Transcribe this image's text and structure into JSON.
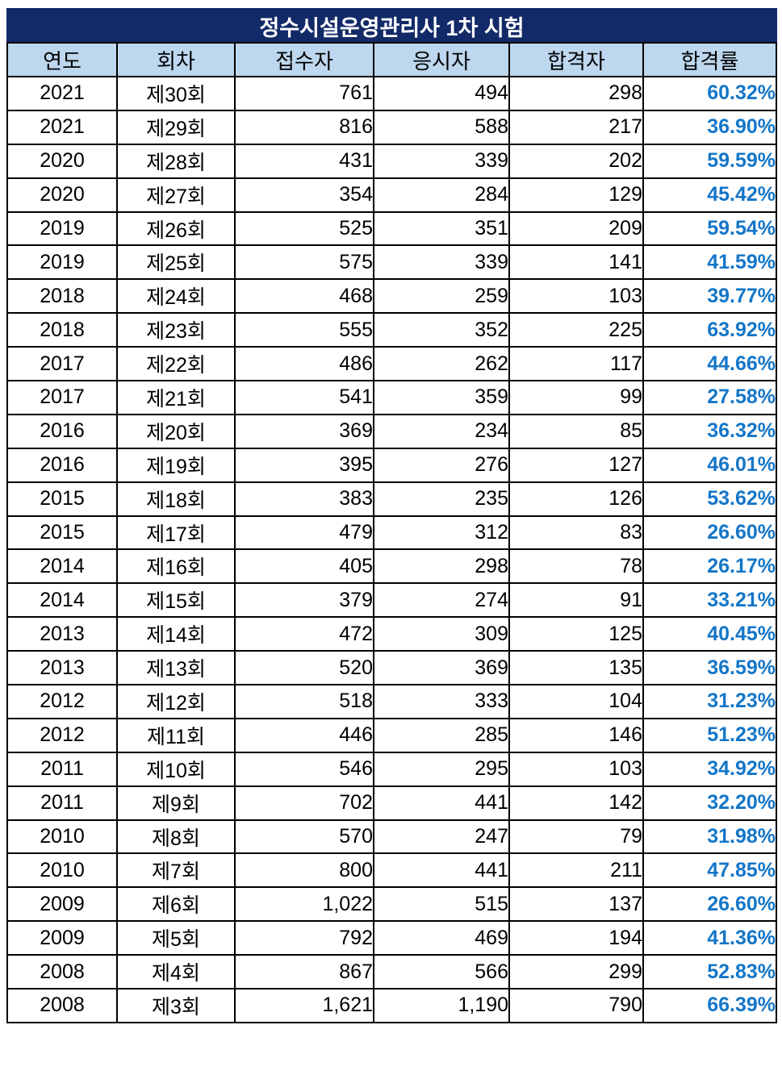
{
  "colors": {
    "title_background": "#132A68",
    "title_text": "#FFFFFF",
    "header_background": "#BDD7EE",
    "border": "#000000",
    "body_text": "#000000",
    "pass_rate_text": "#1476C8",
    "page_background": "#FFFFFF"
  },
  "chart_data": {
    "type": "table",
    "title": "정수시설운영관리사 1차 시험",
    "columns": [
      "연도",
      "회차",
      "접수자",
      "응시자",
      "합격자",
      "합격률"
    ],
    "column_keys": [
      "year",
      "round",
      "applicants",
      "examinees",
      "passers",
      "pass-rate"
    ],
    "rows": [
      [
        "2021",
        "제30회",
        "761",
        "494",
        "298",
        "60.32%"
      ],
      [
        "2021",
        "제29회",
        "816",
        "588",
        "217",
        "36.90%"
      ],
      [
        "2020",
        "제28회",
        "431",
        "339",
        "202",
        "59.59%"
      ],
      [
        "2020",
        "제27회",
        "354",
        "284",
        "129",
        "45.42%"
      ],
      [
        "2019",
        "제26회",
        "525",
        "351",
        "209",
        "59.54%"
      ],
      [
        "2019",
        "제25회",
        "575",
        "339",
        "141",
        "41.59%"
      ],
      [
        "2018",
        "제24회",
        "468",
        "259",
        "103",
        "39.77%"
      ],
      [
        "2018",
        "제23회",
        "555",
        "352",
        "225",
        "63.92%"
      ],
      [
        "2017",
        "제22회",
        "486",
        "262",
        "117",
        "44.66%"
      ],
      [
        "2017",
        "제21회",
        "541",
        "359",
        "99",
        "27.58%"
      ],
      [
        "2016",
        "제20회",
        "369",
        "234",
        "85",
        "36.32%"
      ],
      [
        "2016",
        "제19회",
        "395",
        "276",
        "127",
        "46.01%"
      ],
      [
        "2015",
        "제18회",
        "383",
        "235",
        "126",
        "53.62%"
      ],
      [
        "2015",
        "제17회",
        "479",
        "312",
        "83",
        "26.60%"
      ],
      [
        "2014",
        "제16회",
        "405",
        "298",
        "78",
        "26.17%"
      ],
      [
        "2014",
        "제15회",
        "379",
        "274",
        "91",
        "33.21%"
      ],
      [
        "2013",
        "제14회",
        "472",
        "309",
        "125",
        "40.45%"
      ],
      [
        "2013",
        "제13회",
        "520",
        "369",
        "135",
        "36.59%"
      ],
      [
        "2012",
        "제12회",
        "518",
        "333",
        "104",
        "31.23%"
      ],
      [
        "2012",
        "제11회",
        "446",
        "285",
        "146",
        "51.23%"
      ],
      [
        "2011",
        "제10회",
        "546",
        "295",
        "103",
        "34.92%"
      ],
      [
        "2011",
        "제9회",
        "702",
        "441",
        "142",
        "32.20%"
      ],
      [
        "2010",
        "제8회",
        "570",
        "247",
        "79",
        "31.98%"
      ],
      [
        "2010",
        "제7회",
        "800",
        "441",
        "211",
        "47.85%"
      ],
      [
        "2009",
        "제6회",
        "1,022",
        "515",
        "137",
        "26.60%"
      ],
      [
        "2009",
        "제5회",
        "792",
        "469",
        "194",
        "41.36%"
      ],
      [
        "2008",
        "제4회",
        "867",
        "566",
        "299",
        "52.83%"
      ],
      [
        "2008",
        "제3회",
        "1,621",
        "1,190",
        "790",
        "66.39%"
      ]
    ]
  }
}
